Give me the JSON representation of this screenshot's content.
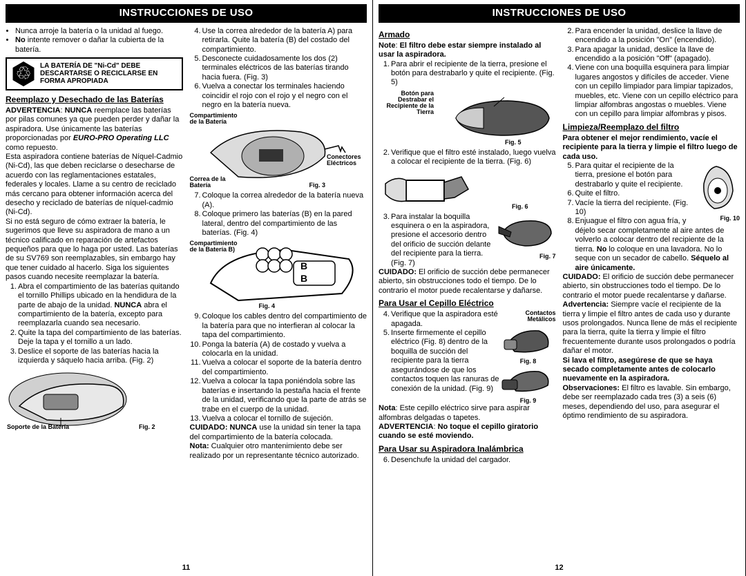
{
  "page_left": {
    "header": "INSTRUCCIONES DE USO",
    "col1": {
      "bullets": [
        "Nunca arroje la batería o la unidad al fuego.",
        "<b>No</b> intente remover o dañar la cubierta de la batería."
      ],
      "recycle": "LA BATERÍA DE \"Ni-Cd\" DEBE DESCARTARSE O RECICLARSE EN FORMA APROPIADA",
      "sect1": "Reemplazo y Desechado de las Baterías",
      "advert1": "<b>ADVERTENCIA</b>: <b>NUNCA</b> reemplace las baterías por pilas comunes ya que pueden perder y dañar la aspiradora. Use únicamente las baterías proporcionadas por <b><i>EURO-PRO Operating LLC</i></b> como repuesto.",
      "para1": "Esta aspiradora contiene baterías de Níquel-Cadmio (Ni-Cd), las que deben reciclarse o desecharse de acuerdo con las reglamentaciones estatales, federales y locales. Llame a su centro de reciclado más cercano para obtener información acerca del desecho y reciclado de baterías de níquel-cadmio (Ni-Cd).",
      "para2": "Si no está seguro de cómo extraer la batería, le sugerimos que lleve su aspiradora de mano a un técnico calificado en reparación de artefactos pequeños para que lo haga por usted. Las baterías de su SV769 son reemplazables, sin embargo hay que tener cuidado al hacerlo. Siga los siguientes pasos cuando necesite reemplazar la batería.",
      "steps1": [
        "Abra el compartimiento de las baterías quitando el tornillo Phillips ubicado en la hendidura de la parte de abajo de la unidad. <b>NUNCA</b> abra el compartimiento de la batería, excepto para reemplazarla cuando sea necesario.",
        "Quite la tapa del compartimiento de las baterías. Deje la tapa y el tornillo a un lado.",
        "Deslice el soporte de las baterías hacia la izquierda y sáquelo hacia arriba. (Fig. 2)"
      ],
      "fig2_label1": "Soporte de la Batería",
      "fig2_label2": "Fig. 2"
    },
    "col2": {
      "steps4": [
        "Use la correa alrededor de la batería A) para retirarla. Quite la batería (B) del costado del compartimiento.",
        "Desconecte cuidadosamente los dos (2) terminales eléctricos de las baterías tirando hacia fuera. (Fig. 3)",
        "Vuelva a conectar los terminales haciendo coincidir el rojo con el rojo y el negro con el negro en la batería nueva."
      ],
      "fig3_l1": "Compartimiento de la Batería",
      "fig3_l2": "Correa de la Batería",
      "fig3_l3": "Conectores Eléctricos",
      "fig3_cap": "Fig. 3",
      "steps7": [
        "Coloque la correa alrededor de la batería nueva (A).",
        "Coloque primero las baterías (B) en la pared lateral, dentro del compartimiento de las baterías. (Fig. 4)"
      ],
      "fig4_l1": "Compartimiento de la Batería B)",
      "fig4_cap": "Fig. 4",
      "steps9": [
        "Coloque los cables dentro del compartimiento de la batería para que no interfieran al colocar la tapa del compartimiento.",
        "Ponga la batería (A) de costado y vuelva a colocarla en la unidad.",
        "Vuelva a colocar el soporte de la batería dentro del compartimiento.",
        "Vuelva a colocar la tapa poniéndola sobre las baterías e insertando la pestaña hacia el frente de la unidad, verificando que la parte de atrás se trabe en el cuerpo de la unidad.",
        "Vuelva a colocar el tornillo de sujeción."
      ],
      "cuid": "<b>CUIDADO: NUNCA</b> use la unidad sin tener la tapa del compartimiento de la batería colocada.",
      "nota": "<b>Nota:</b> Cualquier otro mantenimiento debe ser realizado por un representante técnico autorizado."
    },
    "pagenum": "11"
  },
  "page_right": {
    "header": "INSTRUCCIONES DE USO",
    "col1": {
      "sect1": "Armado",
      "note1": "<b>Note</b>: <b>El filtro debe estar siempre instalado al usar la aspiradora.</b>",
      "step1": [
        "Para abrir el recipiente de la tierra, presione el botón para destrabarlo y quite el recipiente. (Fig. 5)"
      ],
      "fig5_l1": "Botón para Destrabar el Recipiente de la Tierra",
      "fig5_cap": "Fig. 5",
      "step2": [
        "Verifique que el filtro esté instalado, luego vuelva a colocar el recipiente de la tierra. (Fig. 6)"
      ],
      "fig6_cap": "Fig. 6",
      "step3": [
        "Para instalar la boquilla esquinera o en la aspiradora, presione el accesorio dentro del orificio de succión delante del recipiente para la tierra. (Fig. 7)"
      ],
      "fig7_cap": "Fig. 7",
      "cuid1": "<b>CUIDADO:</b> El orificio de succión debe permanecer abierto, sin obstrucciones todo el tiempo. De lo contrario el motor puede recalentarse y dañarse.",
      "sect2": "Para Usar el Cepillo Eléctrico",
      "elec_steps": [
        "Verifique que la aspiradora esté apagada.",
        "Inserte firmemente el cepillo eléctrico (Fig. 8) dentro de la boquilla de succión del recipiente para la tierra asegurándose de que los contactos toquen las ranuras de conexión de la unidad. (Fig. 9)"
      ],
      "fig8_l1": "Contactos Metálicos",
      "fig8_cap": "Fig. 8",
      "fig9_cap": "Fig. 9",
      "nota_e": "<b>Nota</b>: Este cepillo eléctrico sirve para aspirar alfombras delgadas o tapetes.",
      "adv_e": "<b>ADVERTENCIA</b>: <b>No toque el cepillo giratorio cuando se esté moviendo.</b>",
      "sect3": "Para Usar su Aspiradora Inalámbrica",
      "inalam": [
        "Desenchufe la unidad del cargador."
      ]
    },
    "col2": {
      "steps2": [
        "Para encender la unidad, deslice la llave de encendido a la posición \"On\" (encendido).",
        "Para apagar la unidad, deslice la llave de encendido a la posición \"Off\" (apagado).",
        "Viene con una boquilla esquinera para limpiar lugares angostos y difíciles de acceder. Viene con un cepillo limpiador para limpiar tapizados, muebles, etc. Viene con un cepillo eléctrico para limpiar alfombras angostas o muebles. Viene con un cepillo para limpiar alfombras y pisos."
      ],
      "sect1": "Limpieza/Reemplazo del filtro",
      "bold1": "Para obtener el mejor rendimiento, vacíe el recipiente para la tierra y limpie el filtro luego de cada uso.",
      "steps_f": [
        "Para quitar el recipiente de la tierra, presione el botón para destrabarlo y quite el recipiente.",
        "Quite el filtro.",
        "Vacíe la tierra del recipiente. (Fig. 10)",
        "Enjuague el filtro con agua fría, y déjelo secar completamente al aire antes de volverlo a colocar dentro del recipiente de la tierra. <b>No</b> lo coloque en una lavadora. No lo seque con un secador de cabello. <b>Séquelo al aire únicamente.</b>"
      ],
      "fig10_cap": "Fig. 10",
      "cuid2": "<b>CUIDADO:</b> El orificio de succión debe permanecer abierto, sin obstrucciones todo el tiempo. De lo contrario el motor puede recalentarse y dañarse.",
      "adv2": "<b>Advertencia:</b> Siempre vacíe el recipiente de la tierra y limpie el filtro antes de cada uso y durante usos prolongados. Nunca llene de más el recipiente para la tierra, quite la tierra y limpie el filtro frecuentemente durante usos prolongados o podría dañar el motor.",
      "bold2": "Si lava el filtro, asegúrese de que se haya secado completamente antes de colocarlo nuevamente en la aspiradora.",
      "obs": "<b>Observaciones:</b> El filtro es lavable. Sin embargo, debe ser reemplazado cada tres (3) a seis (6) meses, dependiendo del uso, para asegurar el óptimo rendimiento de su aspiradora."
    },
    "pagenum": "12"
  }
}
